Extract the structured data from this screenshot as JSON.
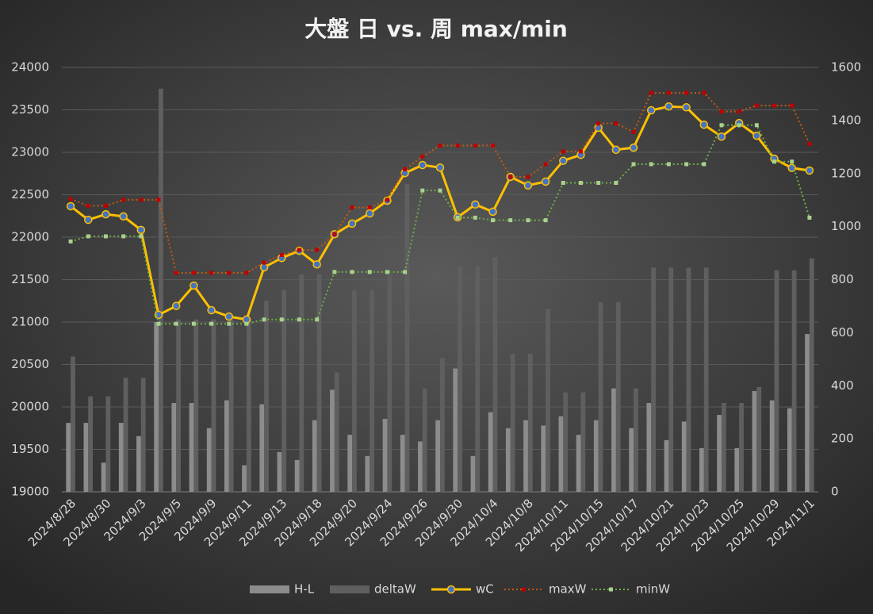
{
  "chart_data": {
    "type": "combo",
    "title": "大盤 日 vs. 周 max/min",
    "categories": [
      "2024/8/28",
      null,
      "2024/8/30",
      null,
      "2024/9/3",
      null,
      "2024/9/5",
      null,
      "2024/9/9",
      null,
      "2024/9/11",
      null,
      "2024/9/13",
      null,
      "2024/9/18",
      null,
      "2024/9/20",
      null,
      "2024/9/24",
      null,
      "2024/9/26",
      null,
      "2024/9/30",
      null,
      "2024/10/4",
      null,
      "2024/10/8",
      null,
      "2024/10/11",
      null,
      "2024/10/15",
      null,
      "2024/10/17",
      null,
      "2024/10/21",
      null,
      "2024/10/23",
      null,
      "2024/10/25",
      null,
      "2024/10/29",
      null,
      "2024/11/1"
    ],
    "ylim": [
      19000,
      24000
    ],
    "yticks": [
      19000,
      19500,
      20000,
      20500,
      21000,
      21500,
      22000,
      22500,
      23000,
      23500,
      24000
    ],
    "y2lim": [
      0,
      1600
    ],
    "y2ticks": [
      0,
      200,
      400,
      600,
      800,
      1000,
      1200,
      1400,
      1600
    ],
    "grid": true,
    "series": [
      {
        "name": "H-L",
        "type": "bar",
        "axis": "y2",
        "color": "#8c8c8c",
        "values": [
          260,
          260,
          110,
          260,
          210,
          640,
          335,
          335,
          240,
          345,
          100,
          330,
          150,
          120,
          270,
          385,
          215,
          135,
          275,
          215,
          190,
          270,
          465,
          135,
          300,
          240,
          270,
          250,
          285,
          215,
          270,
          390,
          240,
          335,
          195,
          265,
          165,
          290,
          165,
          380,
          345,
          315,
          595
        ]
      },
      {
        "name": "deltaW",
        "type": "bar",
        "axis": "y2",
        "color": "#5f5f5f",
        "values": [
          510,
          360,
          360,
          430,
          430,
          1520,
          650,
          650,
          650,
          650,
          650,
          720,
          760,
          820,
          820,
          450,
          760,
          760,
          820,
          1160,
          390,
          505,
          850,
          850,
          885,
          520,
          520,
          690,
          375,
          375,
          715,
          715,
          390,
          845,
          845,
          845,
          845,
          335,
          335,
          395,
          835,
          835,
          880
        ]
      },
      {
        "name": "wC",
        "type": "line",
        "color": "#ffc000",
        "marker_color": "#4472c4",
        "values": [
          22365,
          22205,
          22270,
          22245,
          22085,
          21085,
          21190,
          21430,
          21140,
          21065,
          21030,
          21645,
          21755,
          21840,
          21680,
          22035,
          22160,
          22280,
          22430,
          22755,
          22850,
          22820,
          22235,
          22385,
          22300,
          22710,
          22610,
          22655,
          22900,
          22970,
          23290,
          23030,
          23055,
          23495,
          23540,
          23530,
          23325,
          23185,
          23345,
          23195,
          22925,
          22815,
          22785
        ]
      },
      {
        "name": "maxW",
        "type": "line",
        "dash": true,
        "color": "#c55a11",
        "marker_color": "#c00000",
        "values": [
          22450,
          22370,
          22370,
          22440,
          22440,
          22440,
          21580,
          21580,
          21580,
          21580,
          21580,
          21700,
          21790,
          21850,
          21850,
          22035,
          22350,
          22350,
          22440,
          22800,
          22950,
          23080,
          23080,
          23080,
          23080,
          22710,
          22710,
          22860,
          23010,
          23010,
          23340,
          23340,
          23240,
          23700,
          23700,
          23700,
          23700,
          23480,
          23480,
          23550,
          23550,
          23550,
          23100
        ]
      },
      {
        "name": "minW",
        "type": "line",
        "dash": true,
        "color": "#70ad47",
        "marker_color": "#a9d18e",
        "values": [
          21950,
          22010,
          22010,
          22010,
          22010,
          20980,
          20980,
          20980,
          20980,
          20980,
          20980,
          21030,
          21030,
          21030,
          21030,
          21590,
          21590,
          21590,
          21590,
          21590,
          22550,
          22550,
          22230,
          22230,
          22200,
          22200,
          22200,
          22200,
          22640,
          22640,
          22640,
          22640,
          22860,
          22860,
          22860,
          22860,
          22860,
          23320,
          23320,
          23320,
          22890,
          22890,
          22230
        ]
      }
    ]
  }
}
